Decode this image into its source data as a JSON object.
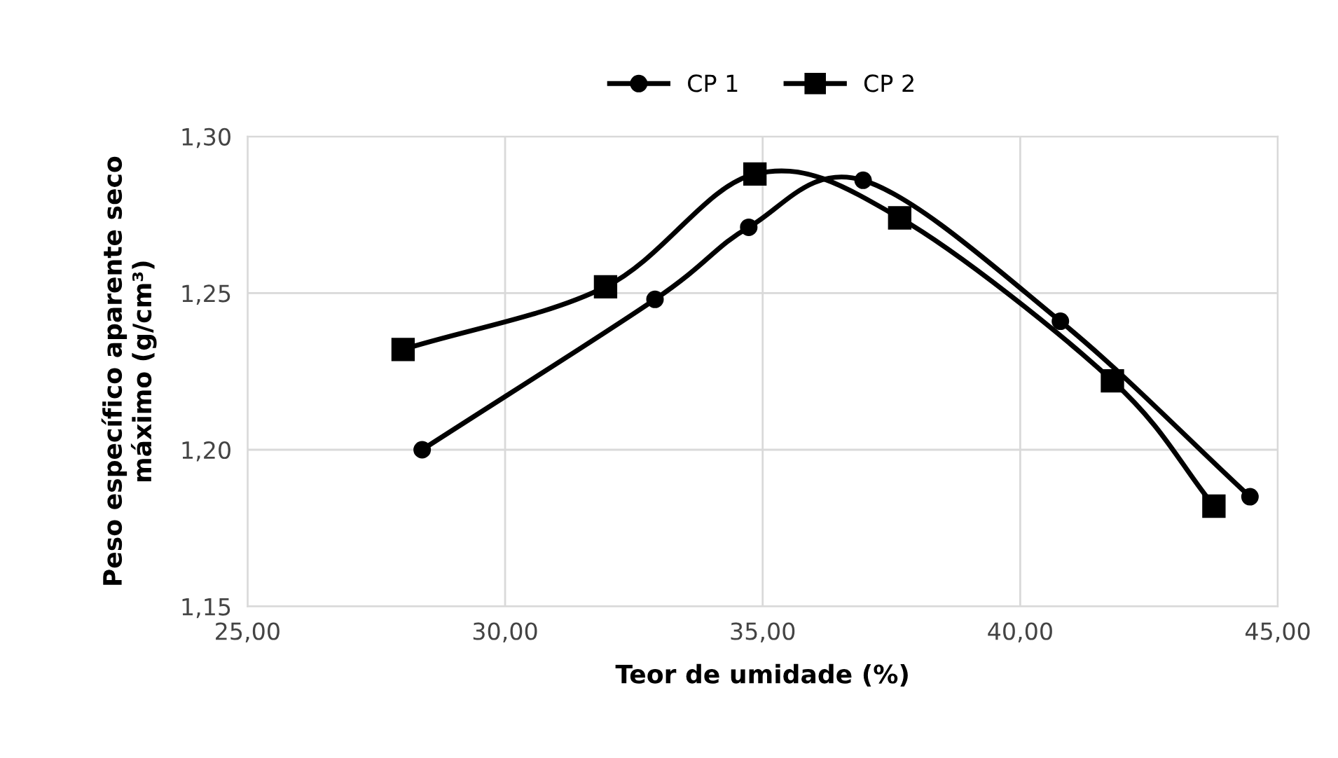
{
  "chart_data": {
    "type": "line",
    "xlabel": "Teor de umidade (%)",
    "ylabel": "Peso específico aparente seco\nmáximo (g/cm³)",
    "series": [
      {
        "name": "CP 1",
        "color": "#000000",
        "marker": "circle",
        "x": [
          28.39,
          32.91,
          34.73,
          36.95,
          40.78,
          44.46
        ],
        "values": [
          1.2,
          1.248,
          1.271,
          1.286,
          1.241,
          1.185
        ]
      },
      {
        "name": "CP 2",
        "color": "#000000",
        "marker": "square",
        "x": [
          28.02,
          31.95,
          34.85,
          37.66,
          41.79,
          43.76
        ],
        "values": [
          1.232,
          1.252,
          1.288,
          1.274,
          1.222,
          1.182
        ]
      }
    ],
    "xlim": [
      25,
      45
    ],
    "xticks": [
      {
        "value": 25,
        "label": "25,00"
      },
      {
        "value": 30,
        "label": "30,00"
      },
      {
        "value": 35,
        "label": "35,00"
      },
      {
        "value": 40,
        "label": "40,00"
      },
      {
        "value": 45,
        "label": "45,00"
      }
    ],
    "ylim": [
      1.15,
      1.3
    ],
    "yticks": [
      {
        "value": 1.15,
        "label": "1,15"
      },
      {
        "value": 1.2,
        "label": "1,20"
      },
      {
        "value": 1.25,
        "label": "1,25"
      },
      {
        "value": 1.3,
        "label": "1,30"
      }
    ],
    "grid": true,
    "legend": "top",
    "line_style": "solid"
  }
}
